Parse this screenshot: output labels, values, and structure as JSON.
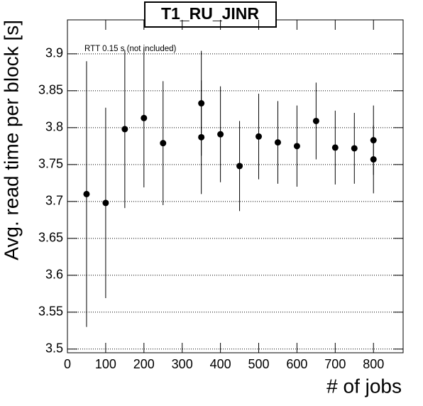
{
  "chart_data": {
    "type": "errorbar",
    "title": "T1_RU_JINR",
    "annotation": "RTT 0.15 s (not included)",
    "x_label": "# of jobs",
    "y_label": "Avg. read time per block [s]",
    "x": [
      50,
      100,
      150,
      200,
      250,
      350,
      350,
      400,
      450,
      500,
      550,
      600,
      650,
      700,
      750,
      800,
      800
    ],
    "values": [
      3.71,
      3.698,
      3.798,
      3.813,
      3.779,
      3.833,
      3.787,
      3.791,
      3.748,
      3.788,
      3.78,
      3.775,
      3.809,
      3.773,
      3.772,
      3.783,
      3.757
    ],
    "errors": [
      0.18,
      0.129,
      0.107,
      0.094,
      0.084,
      0.071,
      0.077,
      0.065,
      0.061,
      0.058,
      0.056,
      0.055,
      0.052,
      0.05,
      0.048,
      0.047,
      0.046
    ],
    "color": "#000000",
    "xlim": [
      0,
      877.5
    ],
    "xticks": [
      0,
      100,
      200,
      300,
      400,
      500,
      600,
      700,
      800
    ],
    "ylim": [
      3.495,
      3.946
    ],
    "yticks": [
      3.5,
      3.55,
      3.6,
      3.65,
      3.7,
      3.75,
      3.8,
      3.85,
      3.9
    ],
    "ygrid": true,
    "xgrid": false
  }
}
